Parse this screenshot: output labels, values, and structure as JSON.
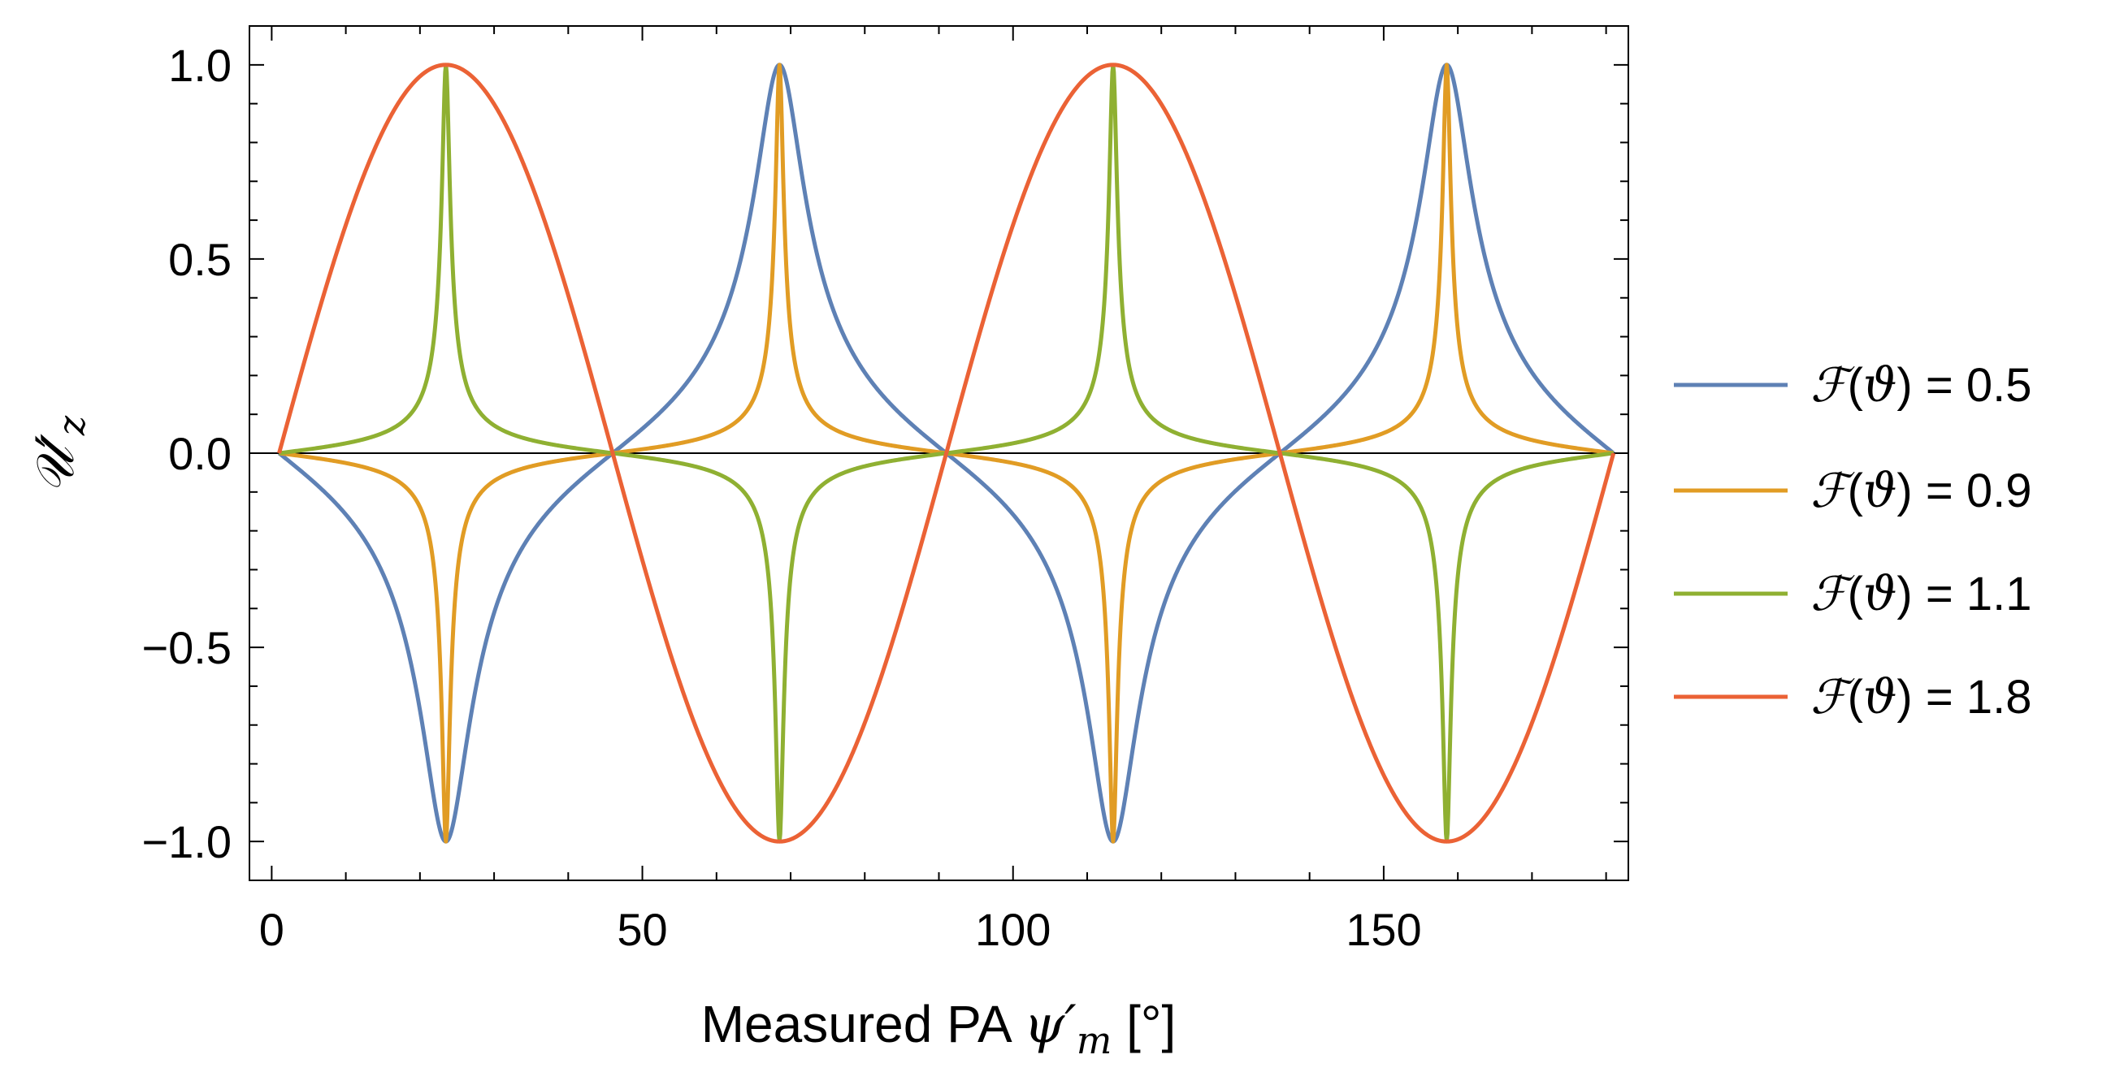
{
  "chart_data": {
    "type": "line",
    "xlabel": "Measured PA ψ′m [°]",
    "xlabel_parts": {
      "prefix": "Measured PA ",
      "symbol": "ψ",
      "prime": "′",
      "subscript": "m",
      "suffix": " [°]"
    },
    "ylabel": "𝒰′z",
    "ylabel_parts": {
      "symbol": "𝒰",
      "prime": "′",
      "subscript": "z"
    },
    "xlim": [
      -3,
      183
    ],
    "ylim": [
      -1.1,
      1.1
    ],
    "xticks": [
      0,
      50,
      100,
      150
    ],
    "xtick_labels": [
      "0",
      "50",
      "100",
      "150"
    ],
    "yticks": [
      -1.0,
      -0.5,
      0.0,
      0.5,
      1.0
    ],
    "ytick_labels": [
      "−1.0",
      "−0.5",
      "0.0",
      "0.5",
      "1.0"
    ],
    "zero_line": true,
    "legend_position": "right",
    "curve_x_range": [
      1,
      181
    ],
    "curve_period_deg": 90,
    "series": [
      {
        "name": "ℱ(ϑ) = 0.5",
        "F": 0.5,
        "color": "#5E81B5",
        "label": {
          "func": "ℱ",
          "open": "(",
          "arg": "ϑ",
          "close": ")",
          "eq": " = ",
          "value": "0.5"
        }
      },
      {
        "name": "ℱ(ϑ) = 0.9",
        "F": 0.9,
        "color": "#E19C24",
        "label": {
          "func": "ℱ",
          "open": "(",
          "arg": "ϑ",
          "close": ")",
          "eq": " = ",
          "value": "0.9"
        }
      },
      {
        "name": "ℱ(ϑ) = 1.1",
        "F": 1.1,
        "color": "#8FB032",
        "label": {
          "func": "ℱ",
          "open": "(",
          "arg": "ϑ",
          "close": ")",
          "eq": " = ",
          "value": "1.1"
        }
      },
      {
        "name": "ℱ(ϑ) = 1.8",
        "F": 1.8,
        "color": "#EB6235",
        "label": {
          "func": "ℱ",
          "open": "(",
          "arg": "ϑ",
          "close": ")",
          "eq": " = ",
          "value": "1.8"
        }
      }
    ]
  }
}
